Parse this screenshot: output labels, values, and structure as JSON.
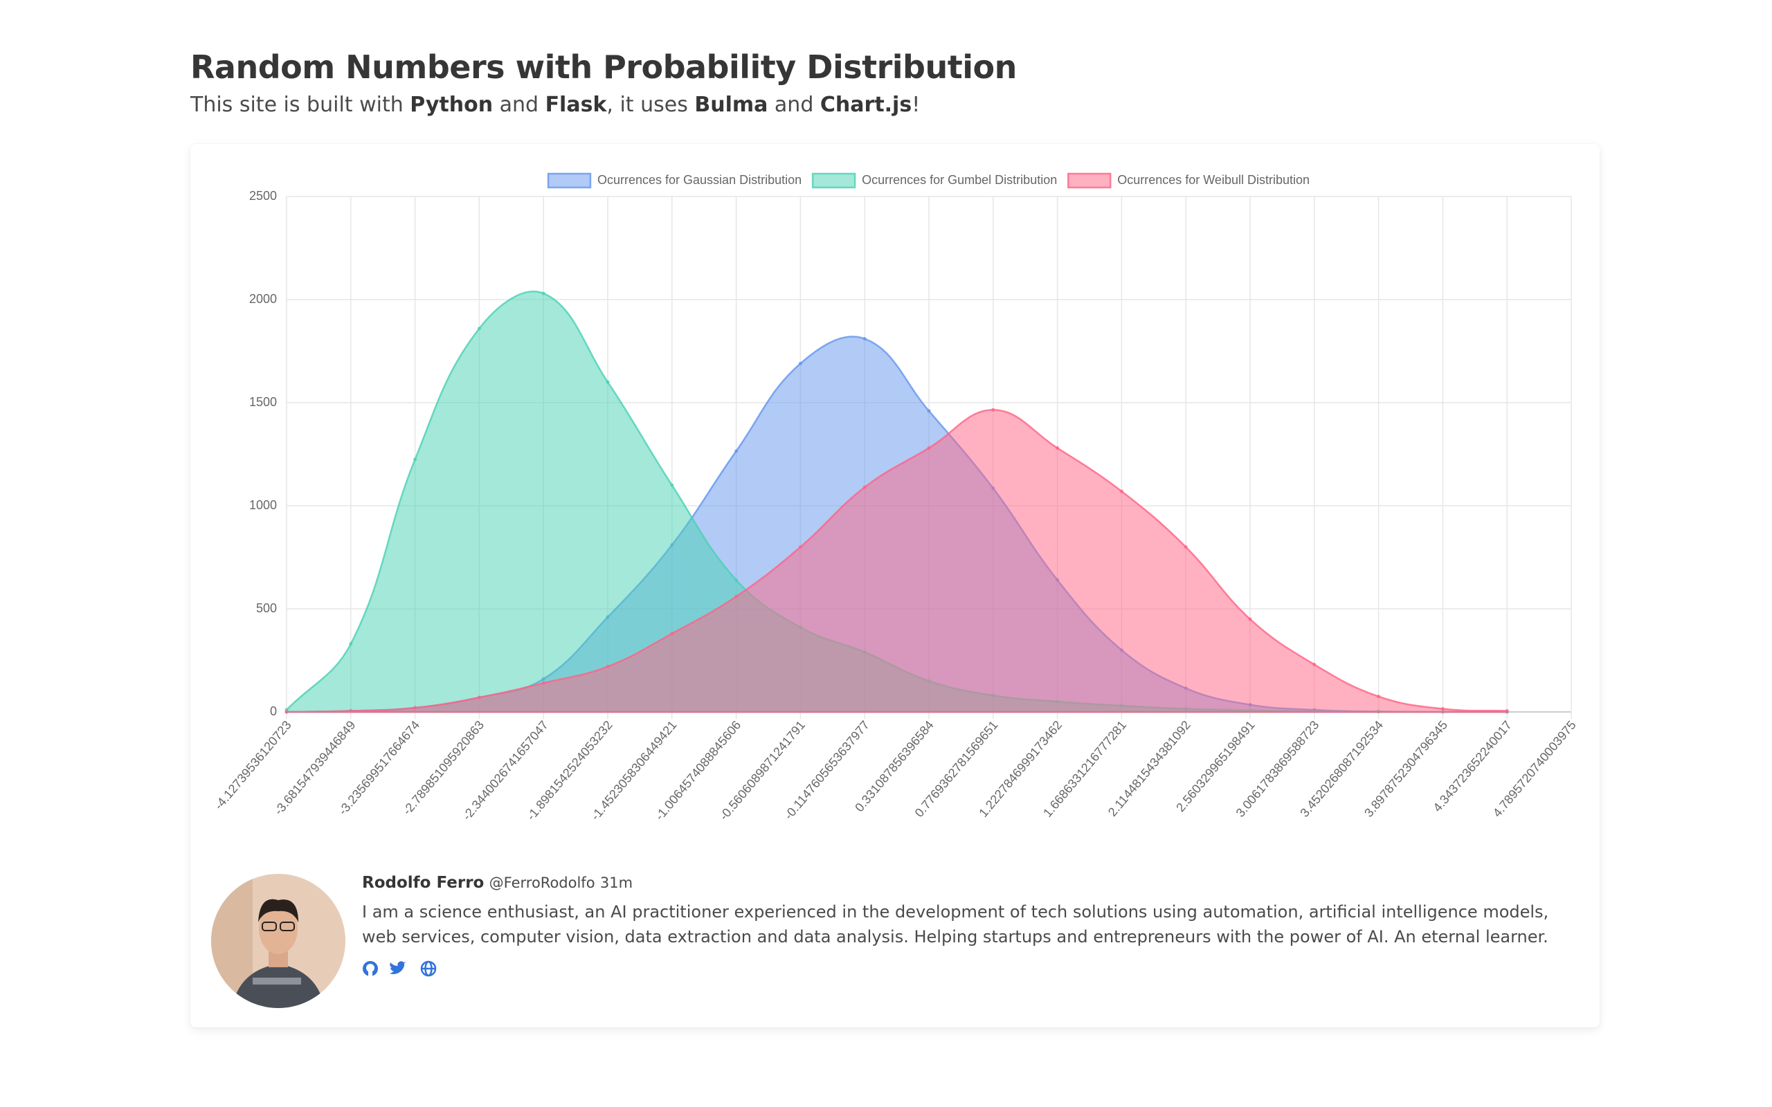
{
  "header": {
    "title": "Random Numbers with Probability Distribution",
    "subtitle": [
      "This site is built with ",
      "Python",
      " and ",
      "Flask",
      ", it uses ",
      "Bulma",
      " and ",
      "Chart.js",
      "!"
    ]
  },
  "chart_data": {
    "type": "line",
    "fill": true,
    "categories": [
      "-4.12739536120723",
      "-3.681547939446849",
      "-3.235699517664674",
      "-2.789851095920863",
      "-2.3440026741657047",
      "-1.8981542524053232",
      "-1.4523058306449421",
      "-1.0064574088845606",
      "-0.5606089871241791",
      "-0.1147605653637977",
      "0.331087856396584",
      "0.7769362781569651",
      "1.2227846999173462",
      "1.6686331216777281",
      "2.1144815434381092",
      "2.560329965198491",
      "3.0061783869588723",
      "3.4520268087192534",
      "3.8978752304796345",
      "4.343723652240017",
      "4.7895720740003975"
    ],
    "series": [
      {
        "name": "Ocurrences for Gaussian Distribution",
        "color": "#6495ed",
        "values": [
          0,
          5,
          20,
          70,
          160,
          460,
          810,
          1265,
          1690,
          1810,
          1460,
          1085,
          640,
          300,
          115,
          35,
          10,
          2,
          0,
          0,
          null
        ]
      },
      {
        "name": "Ocurrences for Gumbel Distribution",
        "color": "#48d1b4",
        "values": [
          10,
          330,
          1225,
          1860,
          2030,
          1600,
          1100,
          640,
          410,
          290,
          150,
          80,
          50,
          30,
          15,
          8,
          3,
          1,
          0,
          0,
          null
        ]
      },
      {
        "name": "Ocurrences for Weibull Distribution",
        "color": "#ff6384",
        "values": [
          0,
          5,
          20,
          70,
          140,
          220,
          380,
          560,
          800,
          1090,
          1280,
          1465,
          1280,
          1070,
          800,
          450,
          230,
          75,
          15,
          5,
          null
        ]
      }
    ],
    "ylim": [
      0,
      2500
    ],
    "yticks": [
      0,
      500,
      1000,
      1500,
      2000,
      2500
    ],
    "grid": true,
    "legend": "top"
  },
  "profile": {
    "name": "Rodolfo Ferro",
    "handle": "@FerroRodolfo",
    "time": "31m",
    "bio": "I am a science enthusiast, an AI practitioner experienced in the development of tech solutions using automation, artificial intelligence models, web services, computer vision, data extraction and data analysis. Helping startups and entrepreneurs with the power of AI. An eternal learner."
  }
}
